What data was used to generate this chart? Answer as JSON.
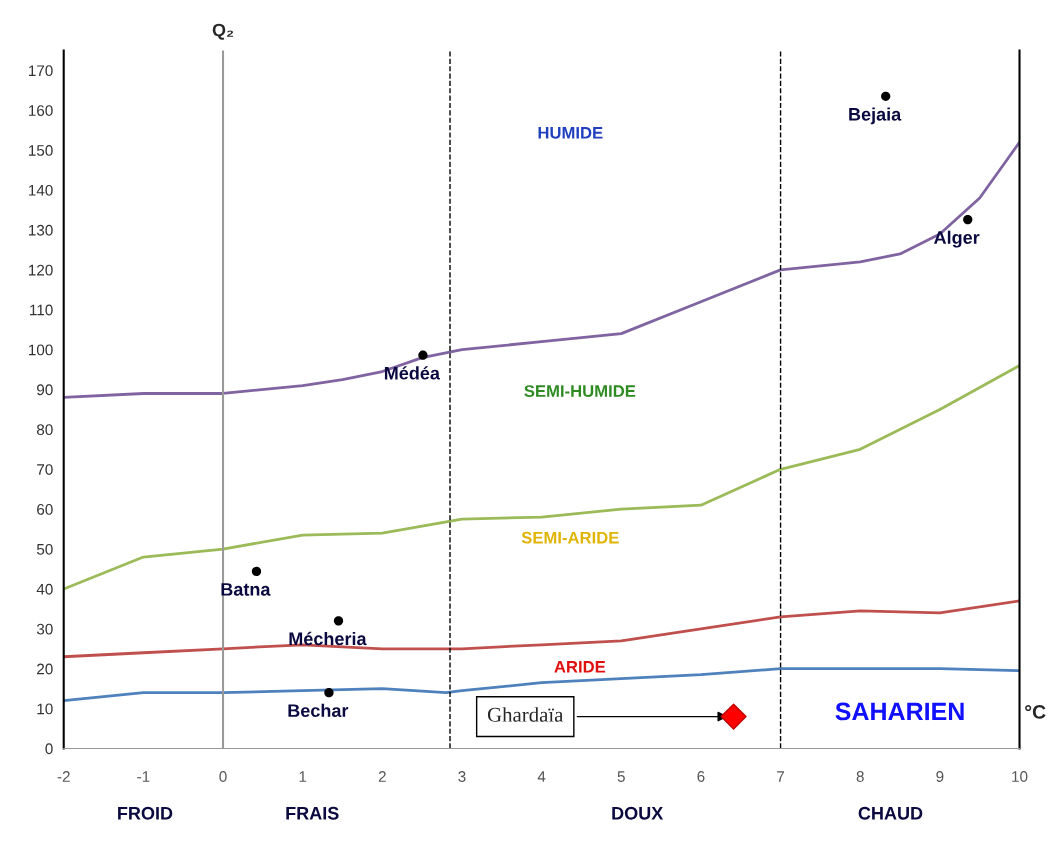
{
  "chart_data": {
    "type": "line",
    "xlabel": "°C",
    "ylabel": "Q₂",
    "xlim": [
      -2,
      10
    ],
    "xticks": [
      -2,
      -1,
      0,
      1,
      2,
      3,
      4,
      5,
      6,
      7,
      8,
      9,
      10
    ],
    "ylim": [
      0,
      175
    ],
    "yticks": [
      0,
      10,
      20,
      30,
      40,
      50,
      60,
      70,
      80,
      90,
      100,
      110,
      120,
      130,
      140,
      150,
      160,
      170
    ],
    "grid": false,
    "legend": false,
    "marker": "none",
    "line_style": "solid",
    "series": [
      {
        "color": "#8064a2",
        "x": [
          -2,
          -1,
          0,
          1,
          1.5,
          2,
          2.5,
          3,
          4,
          5,
          6,
          7,
          8,
          8.5,
          9,
          9.5,
          10
        ],
        "values": [
          88,
          89,
          89,
          91,
          92.5,
          94.5,
          98,
          100,
          102,
          104,
          112,
          120,
          122,
          124,
          129,
          138,
          152
        ]
      },
      {
        "color": "#9bbb59",
        "x": [
          -2,
          -1,
          0,
          1,
          2,
          3,
          4,
          5,
          6,
          7,
          8,
          9,
          10
        ],
        "values": [
          40,
          48,
          50,
          53.5,
          54,
          57.5,
          58,
          60,
          61,
          70,
          75,
          85,
          96
        ]
      },
      {
        "color": "#c0504d",
        "x": [
          -2,
          -1,
          0,
          1,
          2,
          3,
          4,
          5,
          6,
          7,
          8,
          9,
          10
        ],
        "values": [
          23,
          24,
          25,
          26,
          25,
          25,
          26,
          27,
          30,
          33,
          34.5,
          34,
          37
        ]
      },
      {
        "color": "#4f81bd",
        "x": [
          -2,
          -1,
          0,
          1,
          2,
          2.8,
          3,
          4,
          5,
          6,
          7,
          8,
          9,
          10
        ],
        "values": [
          12,
          14,
          14,
          14.5,
          15,
          14,
          14.5,
          16.5,
          17.5,
          18.5,
          20,
          20,
          20,
          19.5
        ]
      },
      {
        "type": "scatter",
        "marker": "circle",
        "color": "#000000",
        "x": [
          8.32,
          9.35,
          2.51,
          0.42,
          1.45,
          1.33
        ],
        "values": [
          163.5,
          132.6,
          98.6,
          44.4,
          32,
          14
        ]
      },
      {
        "type": "scatter",
        "marker": "diamond",
        "color": "#ff0000",
        "x": [
          6.41
        ],
        "values": [
          8
        ]
      }
    ],
    "ref_lines": [
      {
        "axis": "x",
        "value": 0,
        "line_style": "solid",
        "color": "#999999"
      },
      {
        "axis": "x",
        "value": 2.85,
        "line_style": "dashed",
        "color": "#000000"
      },
      {
        "axis": "x",
        "value": 7,
        "line_style": "dashed",
        "color": "#000000"
      }
    ],
    "annotations": [
      {
        "text": "Bejaia",
        "x": 8.32,
        "y": 163.5
      },
      {
        "text": "Alger",
        "x": 9.35,
        "y": 132.6
      },
      {
        "text": "Médéa",
        "x": 2.51,
        "y": 98.6
      },
      {
        "text": "Batna",
        "x": 0.42,
        "y": 44.4
      },
      {
        "text": "Mécheria",
        "x": 1.45,
        "y": 32
      },
      {
        "text": "Bechar",
        "x": 1.33,
        "y": 14
      },
      {
        "text": "Ghardaïa",
        "x": 6.41,
        "y": 8
      },
      "HUMIDE",
      "SEMI-HUMIDE",
      "SEMI-ARIDE",
      "ARIDE",
      "SAHARIEN",
      "FROID",
      "FRAIS",
      "DOUX",
      "CHAUD"
    ]
  }
}
